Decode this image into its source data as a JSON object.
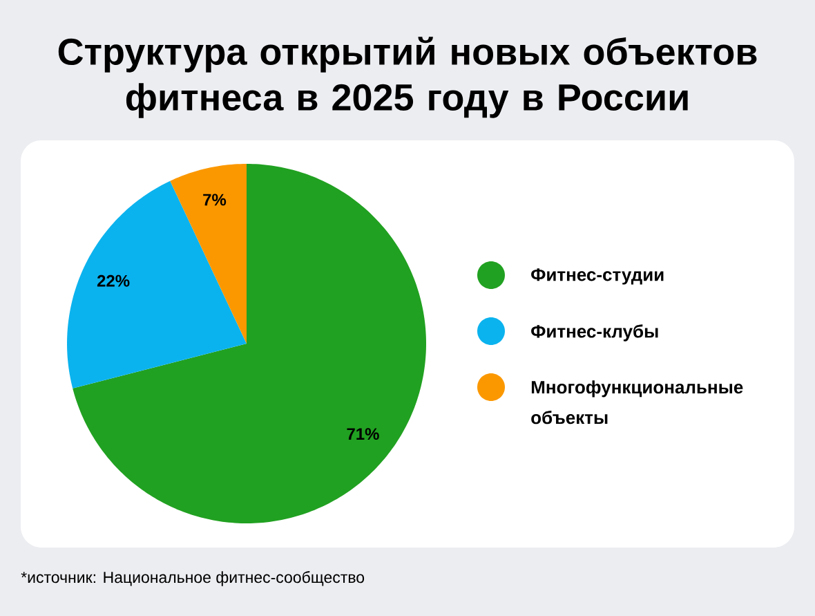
{
  "chart_data": {
    "type": "pie",
    "title": "Структура открытий новых объектов фитнеса в 2025 году в России",
    "categories": [
      "Фитнес-студии",
      "Фитнес-клубы",
      "Многофункциональные объекты"
    ],
    "values": [
      71,
      22,
      7
    ],
    "colors": [
      "#21a121",
      "#0bb3ee",
      "#fb9800"
    ],
    "value_labels": [
      "71%",
      "22%",
      "7%"
    ],
    "legend": "right",
    "annotations": [
      "*источник: Национальное фитнес-сообщество"
    ]
  }
}
